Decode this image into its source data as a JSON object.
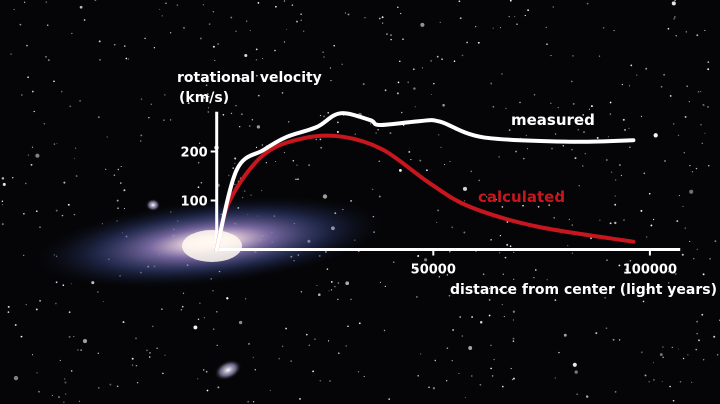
{
  "chart_data": {
    "type": "line",
    "ylabel_line1": "rotational velocity",
    "ylabel_line2": "(km/s)",
    "xlabel": "distance from center (light years)",
    "xlim": [
      0,
      107000
    ],
    "ylim": [
      0,
      281
    ],
    "xticks": [
      50000,
      100000
    ],
    "xtick_labels": [
      "50000",
      "100000"
    ],
    "yticks": [
      100,
      200
    ],
    "ytick_labels": [
      "100",
      "200"
    ],
    "grid": false,
    "legend": "inline labels",
    "series": [
      {
        "name": "measured",
        "color": "#ffffff",
        "x": [
          0,
          4600,
          10800,
          16200,
          23100,
          28500,
          35400,
          37700,
          46900,
          51500,
          61500,
          81500,
          96200
        ],
        "y": [
          0,
          162,
          203,
          230,
          250,
          278,
          264,
          254,
          262,
          261,
          229,
          220,
          223
        ]
      },
      {
        "name": "calculated",
        "color": "#c8161e",
        "x": [
          0,
          3070,
          10800,
          20000,
          29200,
          38500,
          49200,
          58500,
          73900,
          96200
        ],
        "y": [
          0,
          101,
          193,
          227,
          230,
          203,
          135,
          87,
          47,
          16
        ]
      }
    ]
  }
}
